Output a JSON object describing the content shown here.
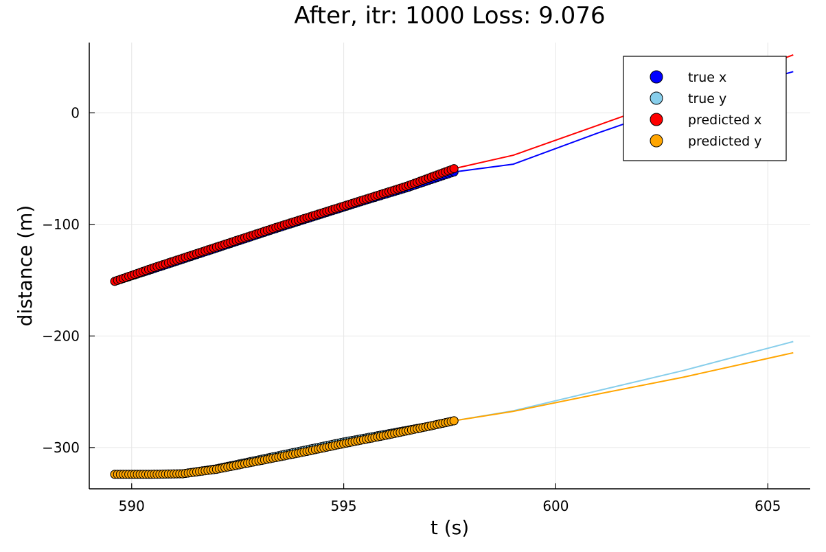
{
  "chart_data": {
    "type": "line",
    "title": "After, itr: 1000 Loss: 9.076",
    "xlabel": "t (s)",
    "ylabel": "distance (m)",
    "xlim": [
      589.0,
      606.0
    ],
    "ylim": [
      -337.0,
      63.0
    ],
    "x_ticks": [
      590,
      595,
      600,
      605
    ],
    "x_tick_labels": [
      "590",
      "595",
      "600",
      "605"
    ],
    "y_ticks": [
      0,
      -100,
      -200,
      -300
    ],
    "y_tick_labels": [
      "0",
      "−100",
      "−200",
      "−300"
    ],
    "grid": true,
    "legend_position": "top-right",
    "observed_end_x": 597.6,
    "series": [
      {
        "name": "true x",
        "color": "#0000ff",
        "marker_color": "#0000ff",
        "x": [
          589.6,
          590.5,
          591.5,
          592.5,
          593.5,
          594.5,
          595.5,
          596.5,
          597.6,
          599.0,
          601.0,
          603.0,
          605.6
        ],
        "y": [
          -151.0,
          -140.0,
          -127.5,
          -115.0,
          -102.5,
          -90.5,
          -78.5,
          -67.0,
          -53.0,
          -46.0,
          -18.0,
          8.5,
          37.0
        ]
      },
      {
        "name": "true y",
        "color": "#87ceeb",
        "marker_color": "#87ceeb",
        "x": [
          589.6,
          590.5,
          591.2,
          592.0,
          593.0,
          594.0,
          595.0,
          596.0,
          597.0,
          597.6,
          599.0,
          601.0,
          603.0,
          605.6
        ],
        "y": [
          -324.0,
          -324.0,
          -323.5,
          -319.0,
          -311.0,
          -303.0,
          -295.0,
          -288.0,
          -281.0,
          -276.0,
          -267.0,
          -249.0,
          -231.0,
          -205.0
        ]
      },
      {
        "name": "predicted x",
        "color": "#ff0000",
        "marker_color": "#ff0000",
        "x": [
          589.6,
          590.5,
          591.5,
          592.5,
          593.5,
          594.5,
          595.5,
          596.5,
          597.6,
          599.0,
          601.0,
          603.0,
          605.6
        ],
        "y": [
          -151.0,
          -139.0,
          -126.5,
          -114.0,
          -101.5,
          -89.5,
          -77.5,
          -65.5,
          -50.0,
          -38.0,
          -11.0,
          16.0,
          52.0
        ]
      },
      {
        "name": "predicted y",
        "color": "#ffa500",
        "marker_color": "#ffa500",
        "x": [
          589.6,
          590.5,
          591.2,
          592.0,
          593.0,
          594.0,
          595.0,
          596.0,
          597.0,
          597.6,
          599.0,
          601.0,
          603.0,
          605.6
        ],
        "y": [
          -324.0,
          -324.0,
          -323.5,
          -319.5,
          -312.0,
          -304.5,
          -296.5,
          -289.0,
          -281.0,
          -276.0,
          -267.5,
          -252.0,
          -237.0,
          -215.0
        ]
      }
    ]
  }
}
